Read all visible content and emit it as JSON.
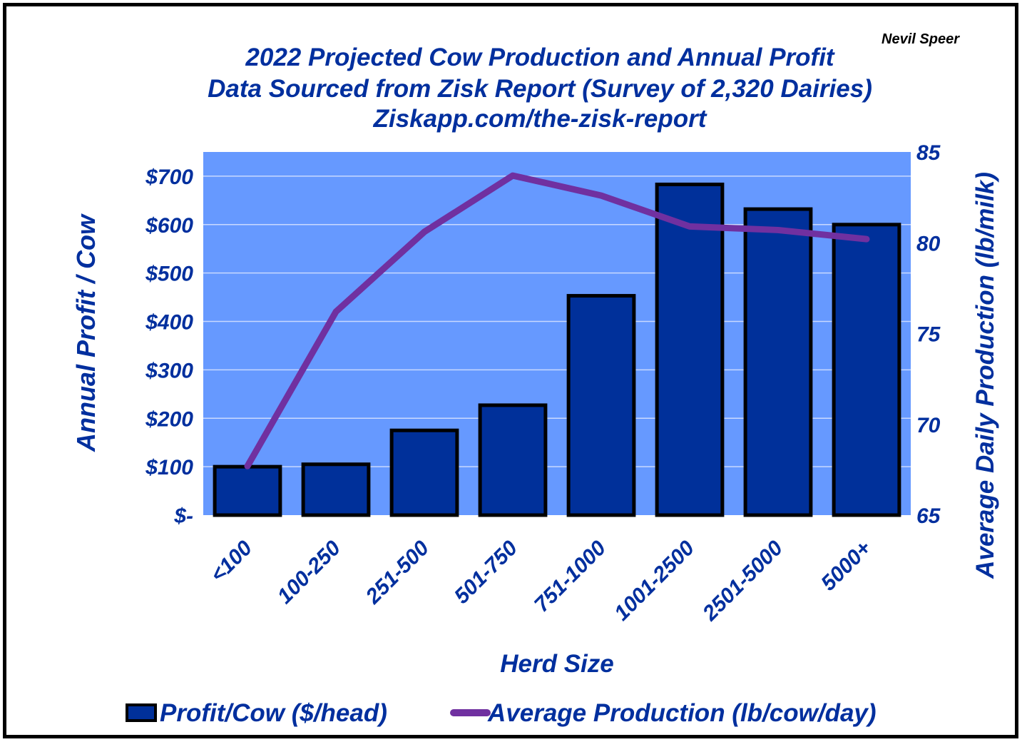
{
  "attribution": "Nevil Speer",
  "chart_data": {
    "type": "bar",
    "title_lines": [
      "2022 Projected Cow Production and Annual Profit",
      "Data Sourced from Zisk Report (Survey of 2,320 Dairies)",
      "Ziskapp.com/the-zisk-report"
    ],
    "xlabel": "Herd Size",
    "ylabel": "Annual Profit / Cow",
    "y2label": "Average Daily Production (lb/milk)",
    "categories": [
      "<100",
      "100-250",
      "251-500",
      "501-750",
      "751-1000",
      "1001-2500",
      "2501-5000",
      "5000+"
    ],
    "series": [
      {
        "name": "Profit/Cow ($/head)",
        "type": "bar",
        "axis": "left",
        "color": "#00309a",
        "values": [
          100,
          105,
          175,
          227,
          453,
          683,
          632,
          600
        ]
      },
      {
        "name": "Average Production (lb/cow/day)",
        "type": "line",
        "axis": "right",
        "color": "#7030a0",
        "values": [
          67.7,
          76.2,
          80.6,
          83.7,
          82.6,
          80.9,
          80.7,
          80.2
        ]
      }
    ],
    "ylim": [
      0,
      750
    ],
    "y_ticks": [
      "$-",
      "$100",
      "$200",
      "$300",
      "$400",
      "$500",
      "$600",
      "$700"
    ],
    "y2lim": [
      65,
      85
    ],
    "y2_ticks": [
      "65",
      "70",
      "75",
      "80",
      "85"
    ],
    "grid": true,
    "legend_position": "bottom",
    "colors": {
      "plot_bg": "#6699ff",
      "text": "#002f9e",
      "bar": "#00309a",
      "line": "#7030a0"
    }
  }
}
